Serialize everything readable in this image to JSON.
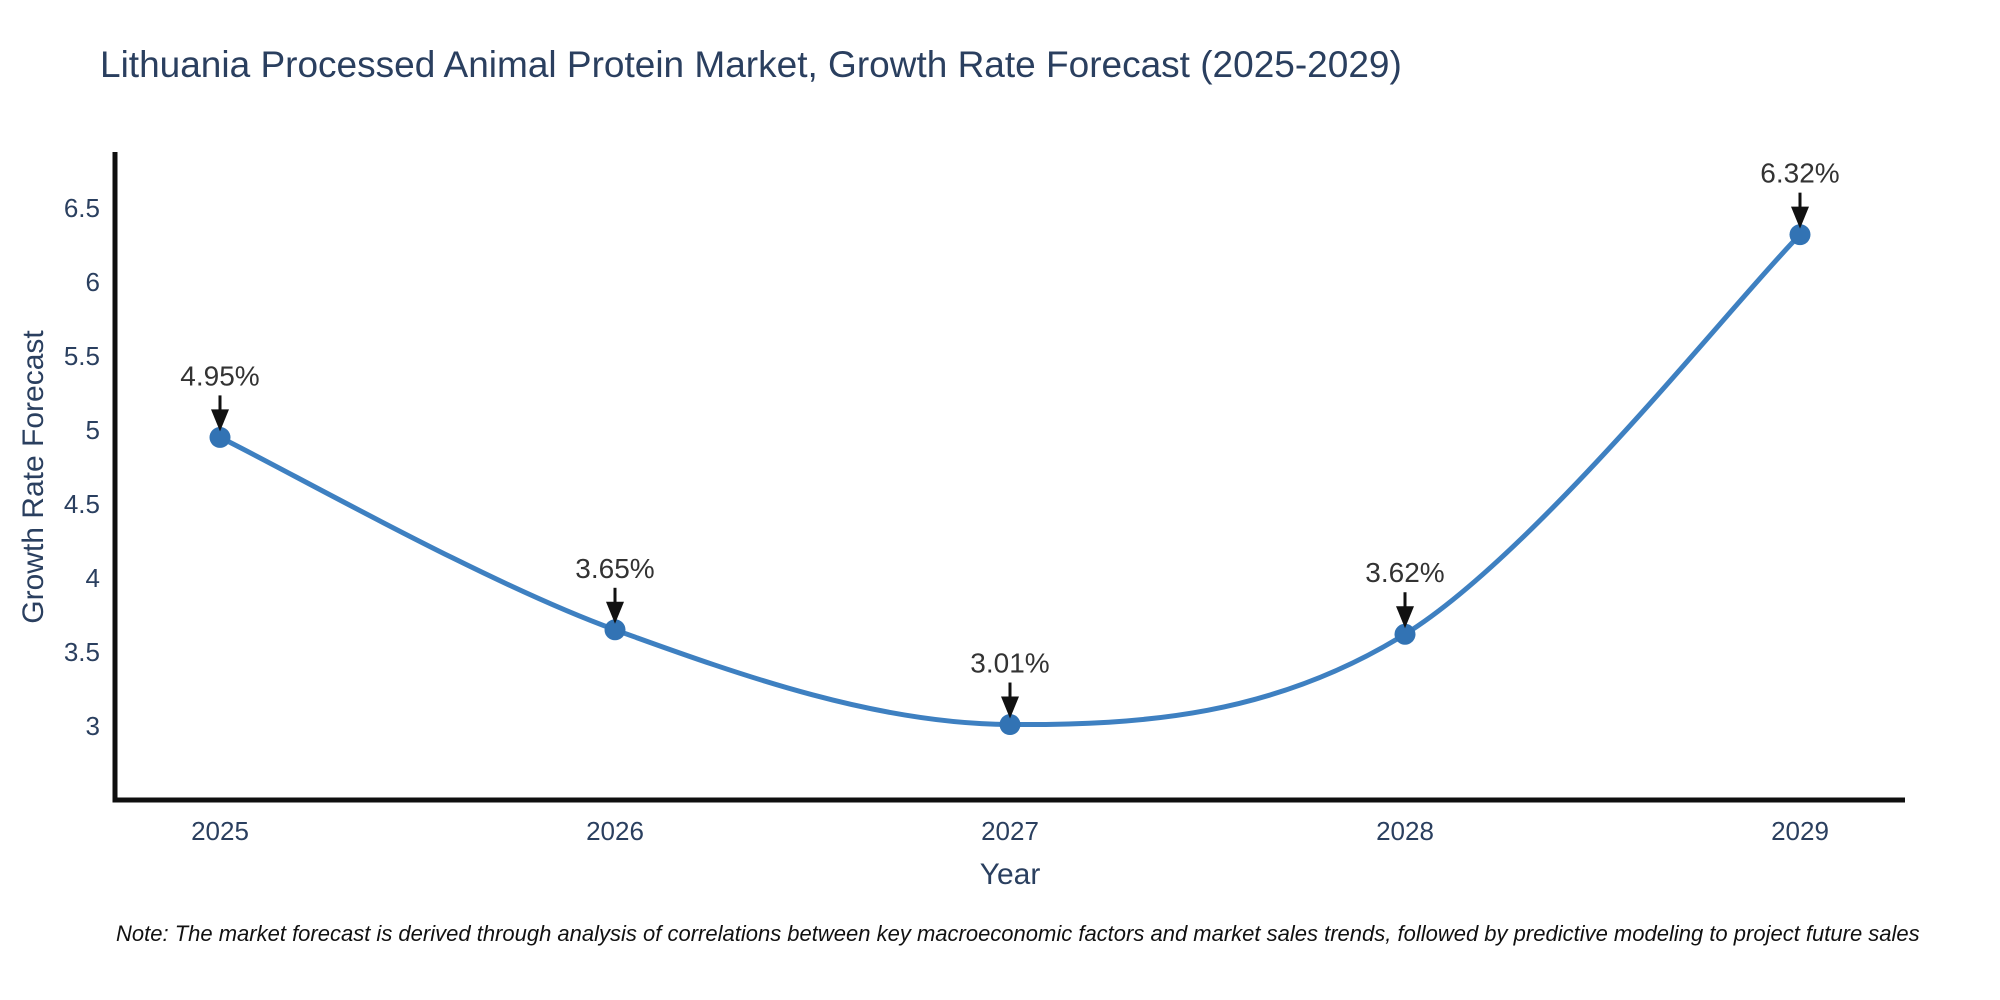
{
  "note": "Note: The market forecast is derived through analysis of correlations between key macroeconomic factors and market sales trends, followed by predictive modeling to project future sales",
  "chart_data": {
    "type": "line",
    "title": "Lithuania Processed Animal Protein Market, Growth Rate Forecast (2025-2029)",
    "x": [
      2025,
      2026,
      2027,
      2028,
      2029
    ],
    "xlabel": "Year",
    "ylabel": "Growth Rate Forecast",
    "series": [
      {
        "name": "Growth Rate Forecast",
        "values": [
          4.95,
          3.65,
          3.01,
          3.62,
          6.32
        ]
      }
    ],
    "point_labels": [
      "4.95%",
      "3.65%",
      "3.01%",
      "3.62%",
      "6.32%"
    ],
    "yticks": [
      3,
      3.5,
      4,
      4.5,
      5,
      5.5,
      6,
      6.5
    ],
    "ylim": [
      2.5,
      6.88
    ],
    "grid": false,
    "legend": "none",
    "line_shape": "spline",
    "colors": {
      "line": "#3E80C1",
      "marker": "#3273B4",
      "axis": "#0f0f0f",
      "tick_text": "#2a3f5f",
      "annotation_text": "#333333",
      "arrow": "#111111"
    }
  }
}
